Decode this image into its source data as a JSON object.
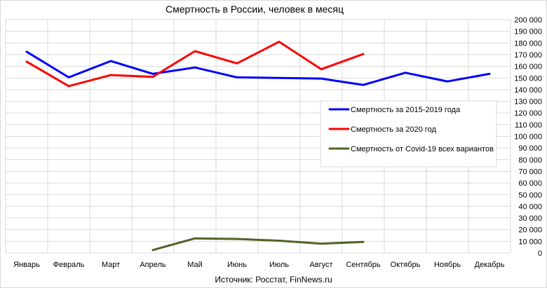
{
  "chart_data": {
    "type": "line",
    "title": "Смертность в России, человек в месяц",
    "source_note": "Источник: Росстат, FinNews.ru",
    "categories": [
      "Январь",
      "Февраль",
      "Март",
      "Апрель",
      "Май",
      "Июнь",
      "Июль",
      "Август",
      "Сентябрь",
      "Октябрь",
      "Ноябрь",
      "Декабрь"
    ],
    "ylim": [
      0,
      200000
    ],
    "y_ticks": [
      "0",
      "10 000",
      "20 000",
      "30 000",
      "40 000",
      "50 000",
      "60 000",
      "70 000",
      "80 000",
      "90 000",
      "100 000",
      "110 000",
      "120 000",
      "130 000",
      "140 000",
      "150 000",
      "160 000",
      "170 000",
      "180 000",
      "190 000",
      "200 000"
    ],
    "y_axis_position": "right",
    "grid": true,
    "legend_position": "right-middle",
    "series": [
      {
        "name": "Смертность за 2015-2019  года",
        "color": "#0000ff",
        "values": [
          172500,
          150500,
          164500,
          153500,
          159000,
          150500,
          150000,
          149500,
          144000,
          154500,
          147000,
          153500
        ]
      },
      {
        "name": "Смертность за 2020  год",
        "color": "#ff0000",
        "values": [
          164000,
          143000,
          152500,
          151000,
          173000,
          162500,
          181000,
          157500,
          170500,
          null,
          null,
          null
        ]
      },
      {
        "name": "Смертность от Covid-19 всех вариантов",
        "color": "#4f6228",
        "values": [
          null,
          null,
          null,
          2500,
          12500,
          12000,
          10500,
          8000,
          9500,
          null,
          null,
          null
        ]
      }
    ]
  }
}
